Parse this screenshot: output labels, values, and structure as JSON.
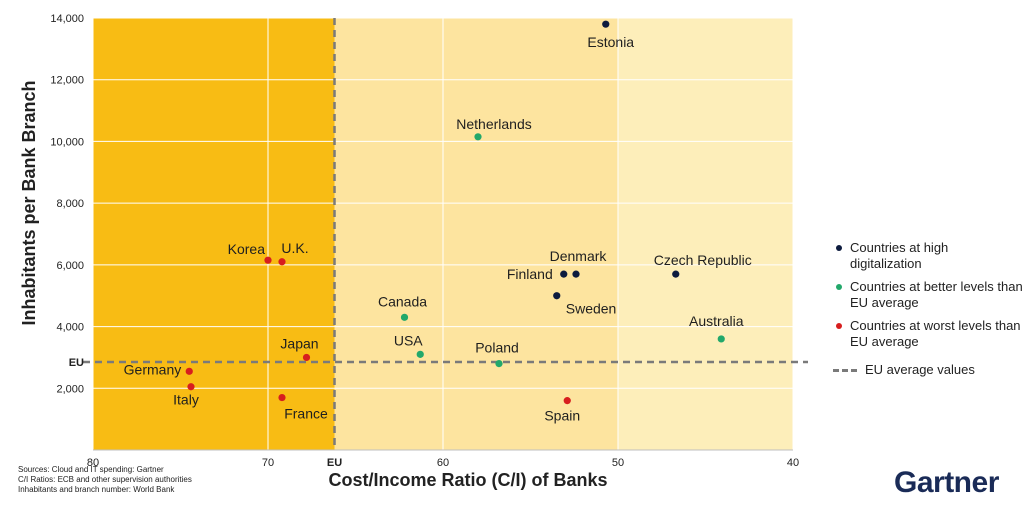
{
  "chart_data": {
    "type": "scatter",
    "xlabel": "Cost/Income Ratio (C/I) of Banks",
    "ylabel": "Inhabitants per Bank Branch",
    "x_reversed": true,
    "xlim": [
      80,
      40
    ],
    "ylim": [
      0,
      14000
    ],
    "x_ticks": [
      "80",
      "70",
      "EU",
      "60",
      "50",
      "40"
    ],
    "x_tick_values": [
      80,
      70,
      66.2,
      60,
      50,
      40
    ],
    "y_ticks": [
      "2,000",
      "4,000",
      "6,000",
      "8,000",
      "10,000",
      "12,000",
      "14,000"
    ],
    "y_tick_values": [
      2000,
      4000,
      6000,
      8000,
      10000,
      12000,
      14000
    ],
    "eu_reference": {
      "x": 66.2,
      "y": 2850,
      "x_label": "EU",
      "y_label": "EU"
    },
    "colors": {
      "high_digitalization": "#0d1b3e",
      "better_than_eu": "#22a86b",
      "worse_than_eu": "#d71e1e",
      "region_worse": "#f8bc14",
      "region_better": "#fde49f",
      "region_better_light": "#fdeeba",
      "reference_line": "#7a7a7a"
    },
    "series": [
      {
        "name": "Countries at high digitalization",
        "color_key": "high_digitalization",
        "points": [
          {
            "label": "Estonia",
            "x": 50.7,
            "y": 13800
          },
          {
            "label": "Denmark",
            "x": 52.4,
            "y": 5700
          },
          {
            "label": "Finland",
            "x": 53.1,
            "y": 5700
          },
          {
            "label": "Sweden",
            "x": 53.5,
            "y": 5000
          },
          {
            "label": "Czech Republic",
            "x": 46.7,
            "y": 5700
          }
        ]
      },
      {
        "name": "Countries at better levels than EU average",
        "color_key": "better_than_eu",
        "points": [
          {
            "label": "Netherlands",
            "x": 58.0,
            "y": 10150
          },
          {
            "label": "Canada",
            "x": 62.2,
            "y": 4300
          },
          {
            "label": "USA",
            "x": 61.3,
            "y": 3100
          },
          {
            "label": "Poland",
            "x": 56.8,
            "y": 2800
          },
          {
            "label": "Australia",
            "x": 44.1,
            "y": 3600
          }
        ]
      },
      {
        "name": "Countries at worst levels than EU average",
        "color_key": "worse_than_eu",
        "points": [
          {
            "label": "Korea",
            "x": 70.0,
            "y": 6150
          },
          {
            "label": "U.K.",
            "x": 69.2,
            "y": 6100
          },
          {
            "label": "Japan",
            "x": 67.8,
            "y": 3000
          },
          {
            "label": "Germany",
            "x": 74.5,
            "y": 2550
          },
          {
            "label": "Italy",
            "x": 74.4,
            "y": 2050
          },
          {
            "label": "France",
            "x": 69.2,
            "y": 1700
          },
          {
            "label": "Spain",
            "x": 52.9,
            "y": 1600
          }
        ]
      }
    ]
  },
  "legend": {
    "items": [
      {
        "label": "Countries at high digitalization",
        "color": "#0d1b3e"
      },
      {
        "label": "Countries at better levels than EU average",
        "color": "#22a86b"
      },
      {
        "label": "Countries at worst levels than EU average",
        "color": "#d71e1e"
      }
    ],
    "reference_label": "EU average values"
  },
  "sources": {
    "line1": "Sources: Cloud and IT spending: Gartner",
    "line2": "C/I Ratios: ECB and other supervision authorities",
    "line3": "Inhabitants and branch number: World Bank"
  },
  "brand": {
    "name": "Gartner",
    "color": "#1a2b57"
  }
}
